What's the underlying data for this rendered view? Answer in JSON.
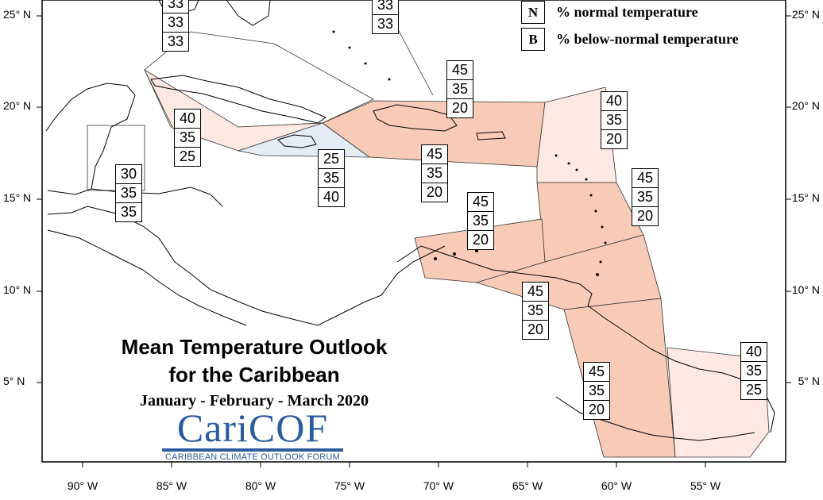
{
  "title": {
    "line1": "Mean Temperature Outlook",
    "line2": "for the Caribbean",
    "period": "January - February - March 2020"
  },
  "logo": {
    "name": "CariCOF",
    "subtitle": "CARIBBEAN CLIMATE OUTLOOK FORUM",
    "color": "#2a5c9e"
  },
  "legend": [
    {
      "key": "N",
      "text": "% normal temperature"
    },
    {
      "key": "B",
      "text": "% below-normal temperature"
    }
  ],
  "lat_labels": [
    "25° N",
    "20° N",
    "15° N",
    "10° N",
    "5° N"
  ],
  "lon_labels": [
    "90° W",
    "85° W",
    "80° W",
    "75° W",
    "70° W",
    "65° W",
    "60° W",
    "55° W"
  ],
  "zones": [
    {
      "id": "bahamas-west",
      "values": [
        "33",
        "33",
        "33"
      ]
    },
    {
      "id": "bahamas-east",
      "values": [
        "33",
        "33"
      ]
    },
    {
      "id": "hispaniola-puerto-rico",
      "values": [
        "45",
        "35",
        "20"
      ]
    },
    {
      "id": "cuba-cayman",
      "values": [
        "40",
        "35",
        "25"
      ]
    },
    {
      "id": "northern-leewards",
      "values": [
        "40",
        "35",
        "20"
      ]
    },
    {
      "id": "belize-honduras",
      "values": [
        "30",
        "35",
        "35"
      ]
    },
    {
      "id": "jamaica",
      "values": [
        "25",
        "35",
        "40"
      ]
    },
    {
      "id": "caribbean-central",
      "values": [
        "45",
        "35",
        "20"
      ]
    },
    {
      "id": "windwards",
      "values": [
        "45",
        "35",
        "20"
      ]
    },
    {
      "id": "abc-islands",
      "values": [
        "45",
        "35",
        "20"
      ]
    },
    {
      "id": "trinidad-tobago",
      "values": [
        "45",
        "35",
        "20"
      ]
    },
    {
      "id": "suriname-french-guiana",
      "values": [
        "40",
        "35",
        "25"
      ]
    },
    {
      "id": "guyana",
      "values": [
        "45",
        "35",
        "20"
      ]
    }
  ],
  "colors": {
    "above_strong": "#f8cbb6",
    "above_light": "#fde9e1",
    "below_light": "#e6ecf6",
    "frame": "#000000"
  }
}
